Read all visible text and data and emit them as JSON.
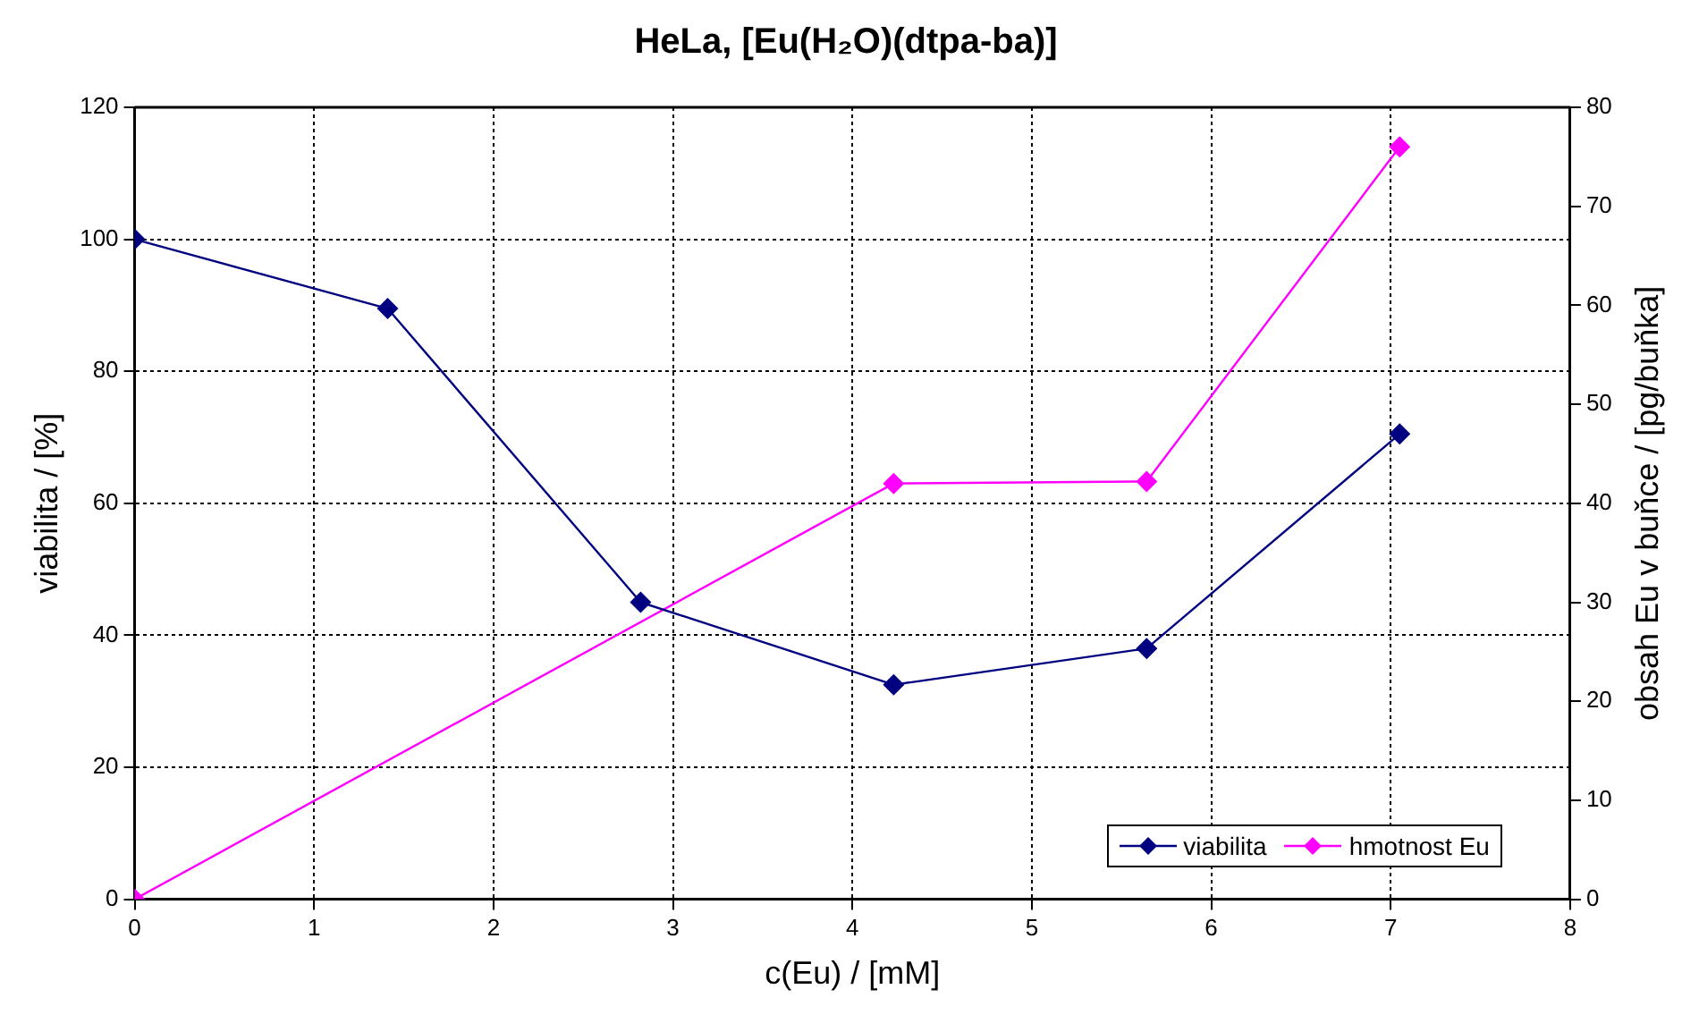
{
  "chart_data": {
    "type": "line",
    "title": "HeLa, [Eu(H₂O)(dtpa-ba)]",
    "xlabel": "c(Eu) / [mM]",
    "ylabel": "viabilita / [%]",
    "y2label": "obsah Eu v buňce / [pg/buňka]",
    "xlim": [
      0,
      8
    ],
    "xticks": [
      0,
      1,
      2,
      3,
      4,
      5,
      6,
      7,
      8
    ],
    "ylim": [
      0,
      120
    ],
    "yticks": [
      0,
      20,
      40,
      60,
      80,
      100,
      120
    ],
    "y2lim": [
      0,
      80
    ],
    "y2ticks": [
      0,
      10,
      20,
      30,
      40,
      50,
      60,
      70,
      80
    ],
    "series": [
      {
        "name": "viabilita",
        "color": "#000080",
        "x": [
          0,
          1.41,
          2.82,
          4.23,
          5.64,
          7.05
        ],
        "values": [
          100,
          89.5,
          45,
          32.5,
          38,
          70.5
        ]
      },
      {
        "name": "hmotnost Eu",
        "color": "#ff00ff",
        "axis": "y2",
        "x": [
          0,
          4.23,
          5.64,
          7.05
        ],
        "values": [
          0,
          42,
          42.2,
          76
        ]
      }
    ],
    "grid": true,
    "legend": "bottom right",
    "marker": "diamond",
    "line_style": "solid"
  }
}
